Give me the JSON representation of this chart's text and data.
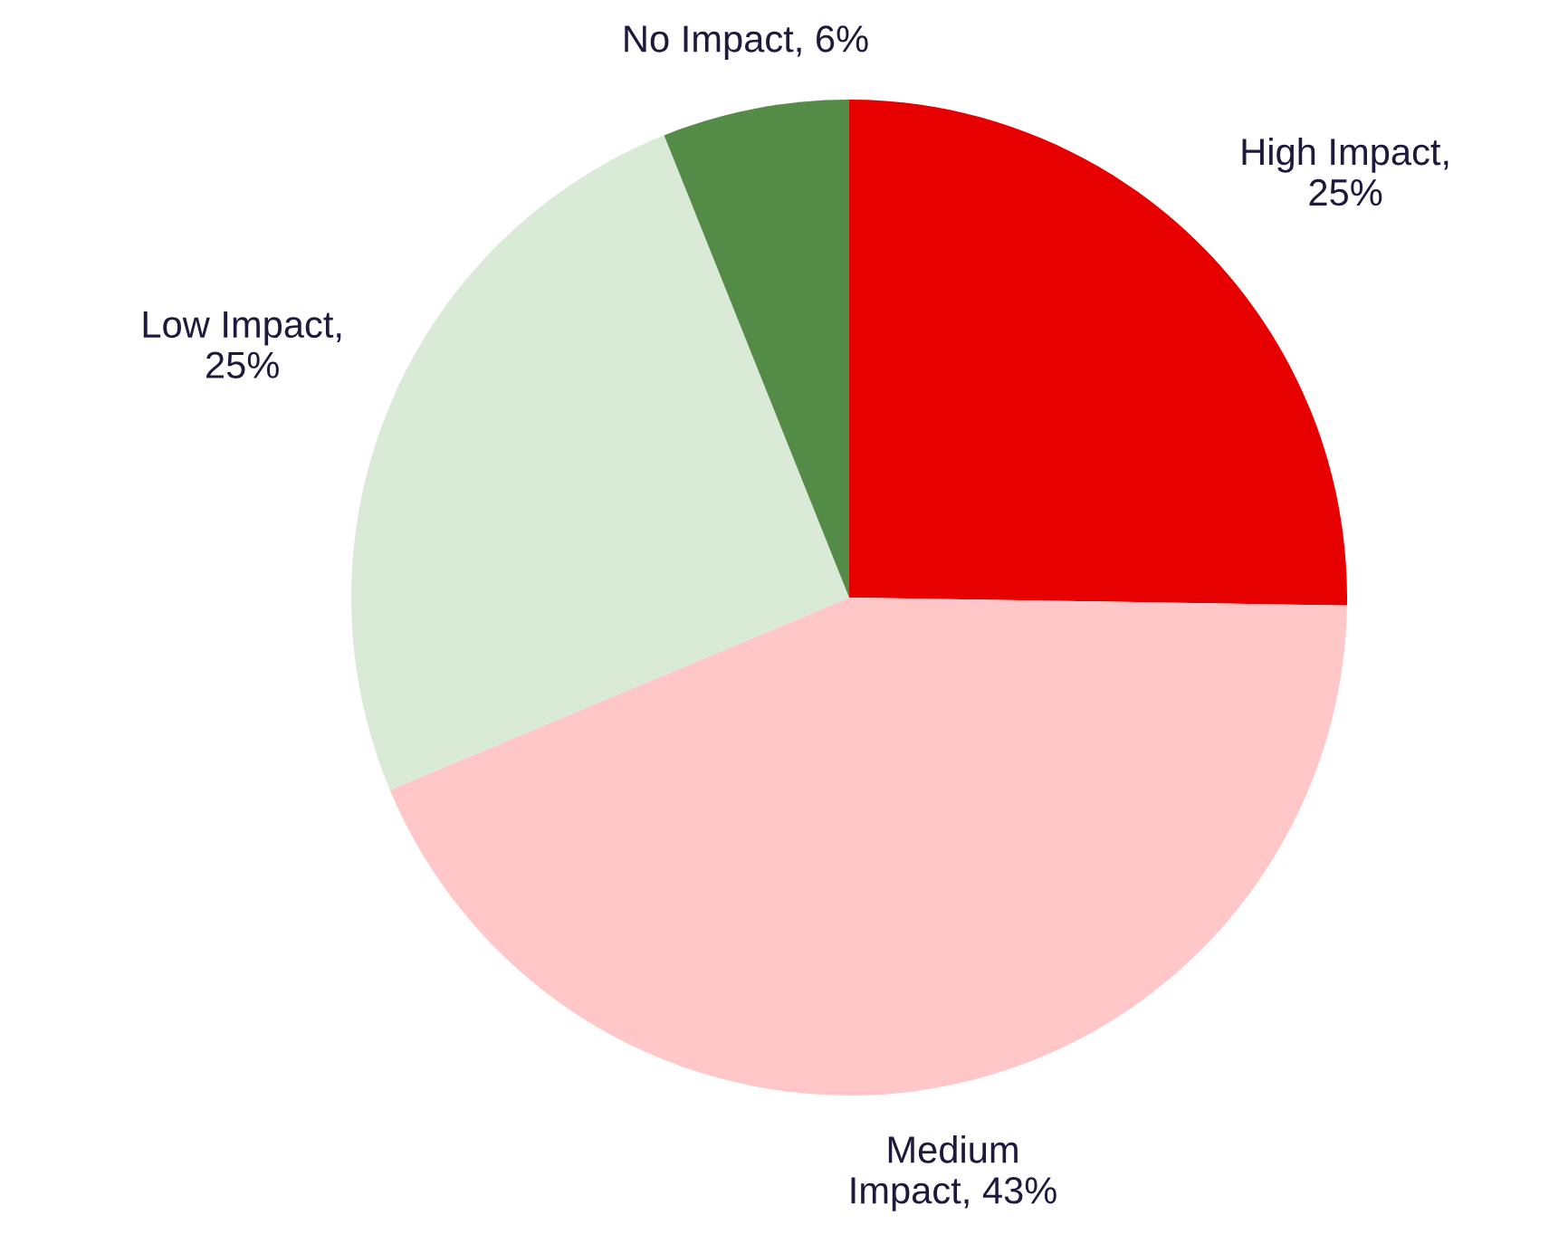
{
  "chart_data": {
    "type": "pie",
    "categories": [
      "High Impact,\n25%",
      "Medium\nImpact, 43%",
      "Low Impact,\n25%",
      "No Impact, 6%"
    ],
    "values": [
      25,
      43,
      25,
      6
    ],
    "colors": [
      "#e60000",
      "#ffc7c7",
      "#d9ead7",
      "#548b46"
    ]
  }
}
